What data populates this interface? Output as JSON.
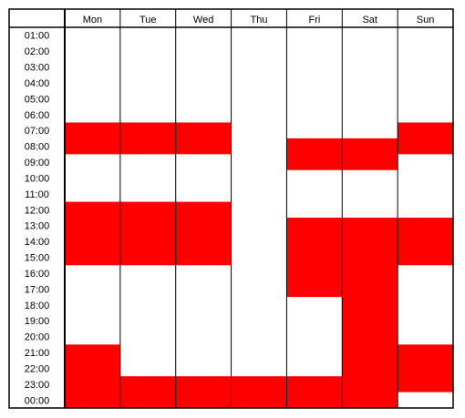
{
  "days": [
    "Mon",
    "Tue",
    "Wed",
    "Thu",
    "Fri",
    "Sat",
    "Sun"
  ],
  "hours": [
    "01:00",
    "02:00",
    "03:00",
    "04:00",
    "05:00",
    "06:00",
    "07:00",
    "08:00",
    "09:00",
    "10:00",
    "11:00",
    "12:00",
    "13:00",
    "14:00",
    "15:00",
    "16:00",
    "17:00",
    "18:00",
    "19:00",
    "20:00",
    "21:00",
    "22:00",
    "23:00",
    "00:00"
  ],
  "colors": {
    "busy": "#ff0000",
    "grid": "#000000",
    "background": "#ffffff"
  },
  "busy_blocks": [
    {
      "day": "Mon",
      "start": 5.5,
      "end": 7.5
    },
    {
      "day": "Mon",
      "start": 10.5,
      "end": 14.5
    },
    {
      "day": "Mon",
      "start": 19.5,
      "end": 23.5
    },
    {
      "day": "Tue",
      "start": 5.5,
      "end": 7.5
    },
    {
      "day": "Tue",
      "start": 10.5,
      "end": 14.5
    },
    {
      "day": "Tue",
      "start": 21.5,
      "end": 23.5
    },
    {
      "day": "Wed",
      "start": 5.5,
      "end": 7.5
    },
    {
      "day": "Wed",
      "start": 10.5,
      "end": 14.5
    },
    {
      "day": "Wed",
      "start": 21.5,
      "end": 23.5
    },
    {
      "day": "Thu",
      "start": 21.5,
      "end": 23.5
    },
    {
      "day": "Fri",
      "start": 6.5,
      "end": 8.5
    },
    {
      "day": "Fri",
      "start": 11.5,
      "end": 16.5
    },
    {
      "day": "Fri",
      "start": 21.5,
      "end": 23.5
    },
    {
      "day": "Sat",
      "start": 6.5,
      "end": 8.5
    },
    {
      "day": "Sat",
      "start": 11.5,
      "end": 23.5
    },
    {
      "day": "Sun",
      "start": 5.5,
      "end": 7.5
    },
    {
      "day": "Sun",
      "start": 11.5,
      "end": 14.5
    },
    {
      "day": "Sun",
      "start": 19.5,
      "end": 22.5
    }
  ]
}
